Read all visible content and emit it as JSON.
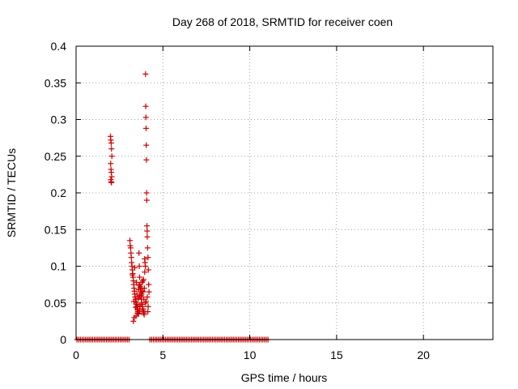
{
  "chart_data": {
    "type": "scatter",
    "title": "Day 268 of 2018, SRMTID for receiver coen",
    "xlabel": "GPS time / hours",
    "ylabel": "SRMTID / TECUs",
    "xlim": [
      0,
      24
    ],
    "ylim": [
      0,
      0.4
    ],
    "xticks": [
      0,
      5,
      10,
      15,
      20
    ],
    "xtick_labels": [
      "0",
      "5",
      "10",
      "15",
      "20"
    ],
    "yticks": [
      0,
      0.05,
      0.1,
      0.15,
      0.2,
      0.25,
      0.3,
      0.35,
      0.4
    ],
    "ytick_labels": [
      "0",
      "0.05",
      "0.1",
      "0.15",
      "0.2",
      "0.25",
      "0.3",
      "0.35",
      "0.4"
    ],
    "grid": true,
    "marker": "plus",
    "marker_color": "#cc0000",
    "series": [
      {
        "x": [
          1.98,
          2.0,
          2.02,
          2.04,
          2.06,
          1.99,
          2.01,
          2.03,
          2.05,
          2.0,
          2.02,
          2.04,
          3.1,
          3.12,
          3.14,
          3.16,
          3.18,
          3.2,
          3.22,
          3.24,
          3.26,
          3.28,
          3.3,
          3.32,
          3.34,
          3.36,
          3.38,
          3.4,
          3.42,
          3.44,
          3.46,
          3.48,
          3.5,
          3.52,
          3.54,
          3.56,
          3.58,
          3.6,
          3.62,
          3.64,
          3.66,
          3.68,
          3.7,
          3.72,
          3.74,
          3.76,
          3.78,
          3.8,
          3.82,
          3.84,
          3.86,
          3.88,
          3.9,
          3.92,
          3.95,
          3.97,
          3.99,
          4.0,
          4.01,
          4.02,
          4.03,
          4.04,
          4.05,
          4.06,
          4.07,
          4.08,
          4.09,
          4.1,
          4.12,
          4.14,
          4.16,
          4.18,
          4.2,
          3.3,
          3.35,
          3.45,
          3.55,
          3.65,
          3.75,
          3.85,
          3.25,
          3.4,
          3.5,
          3.6,
          3.7,
          3.8,
          3.9,
          4.0,
          4.1,
          4.15,
          3.95,
          3.85,
          3.65,
          3.33,
          3.43,
          3.53,
          3.63,
          3.73,
          3.83,
          3.93,
          4.03,
          4.13,
          3.38,
          3.48,
          3.58,
          3.68,
          3.78,
          3.88
        ],
        "y": [
          0.277,
          0.272,
          0.268,
          0.26,
          0.25,
          0.24,
          0.232,
          0.228,
          0.222,
          0.218,
          0.215,
          0.214,
          0.135,
          0.128,
          0.125,
          0.118,
          0.112,
          0.105,
          0.1,
          0.095,
          0.09,
          0.085,
          0.08,
          0.075,
          0.07,
          0.066,
          0.062,
          0.058,
          0.055,
          0.052,
          0.05,
          0.048,
          0.045,
          0.042,
          0.04,
          0.038,
          0.036,
          0.035,
          0.118,
          0.1,
          0.085,
          0.075,
          0.07,
          0.065,
          0.06,
          0.055,
          0.05,
          0.048,
          0.045,
          0.042,
          0.04,
          0.038,
          0.036,
          0.034,
          0.11,
          0.105,
          0.1,
          0.362,
          0.318,
          0.303,
          0.288,
          0.265,
          0.245,
          0.2,
          0.19,
          0.155,
          0.148,
          0.14,
          0.125,
          0.112,
          0.095,
          0.075,
          0.065,
          0.025,
          0.03,
          0.032,
          0.045,
          0.06,
          0.07,
          0.08,
          0.088,
          0.058,
          0.062,
          0.068,
          0.072,
          0.078,
          0.055,
          0.05,
          0.058,
          0.045,
          0.092,
          0.065,
          0.04,
          0.052,
          0.044,
          0.036,
          0.074,
          0.058,
          0.066,
          0.07,
          0.052,
          0.038,
          0.098,
          0.078,
          0.056,
          0.046,
          0.062,
          0.082
        ]
      },
      {
        "zero_ranges": [
          [
            0.05,
            3.1
          ],
          [
            4.25,
            11.05
          ]
        ],
        "zero_step": 0.1
      }
    ]
  }
}
